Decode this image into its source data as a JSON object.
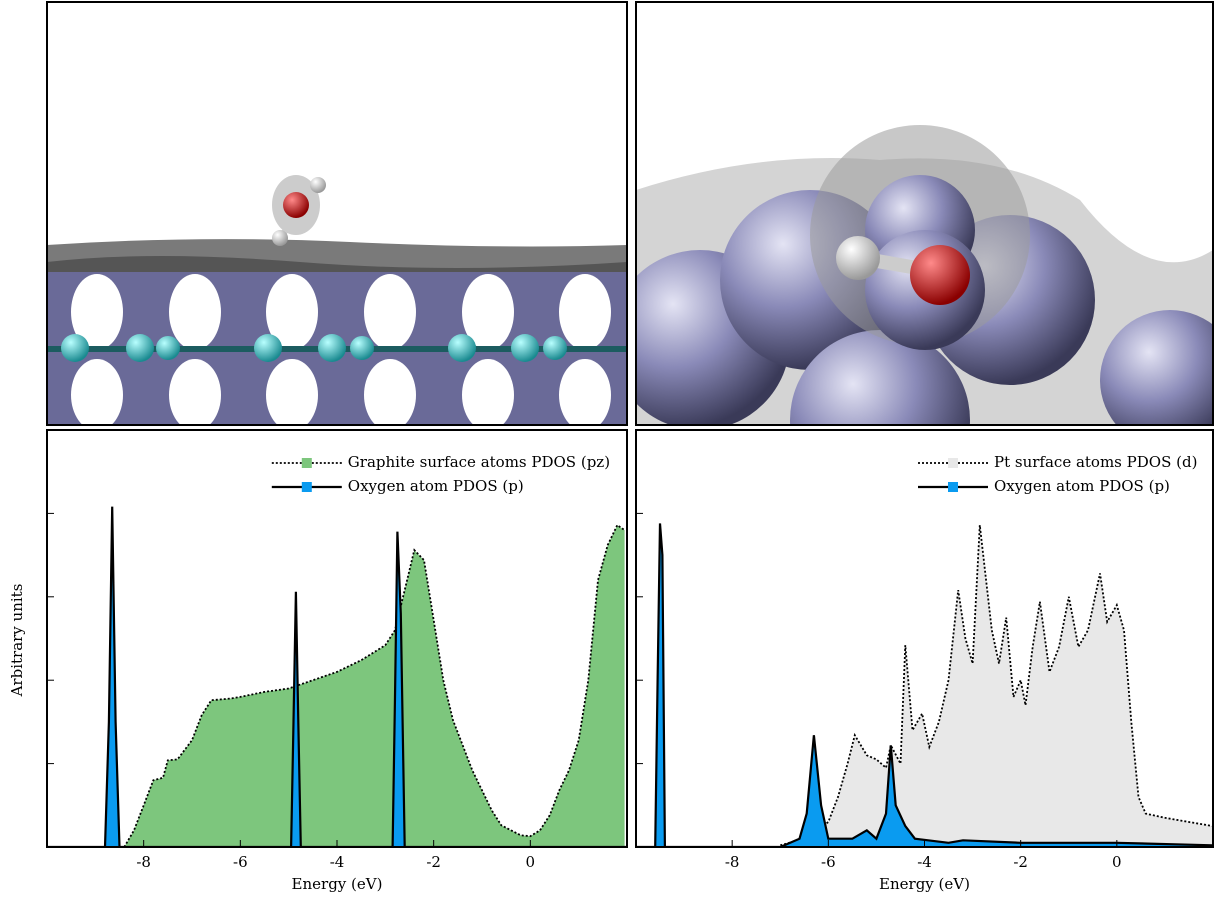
{
  "chart_data": [
    {
      "type": "area",
      "xlabel": "Energy (eV)",
      "ylabel": "Arbitrary units",
      "xlim": [
        -10,
        2
      ],
      "ylim": [
        0,
        5
      ],
      "xticks": [
        -8,
        -6,
        -4,
        -2,
        0
      ],
      "yticks": [
        0,
        1,
        2,
        3,
        4,
        5
      ],
      "legend": "upper right",
      "series": [
        {
          "name": "Graphite surface atoms PDOS (pz)",
          "color": "#7dc67d",
          "line": "dotted",
          "x": [
            -8.4,
            -8.2,
            -8.0,
            -7.8,
            -7.6,
            -7.5,
            -7.3,
            -7.0,
            -6.8,
            -6.6,
            -6.4,
            -6.2,
            -6.0,
            -5.5,
            -5.0,
            -4.5,
            -4.0,
            -3.5,
            -3.0,
            -2.8,
            -2.6,
            -2.4,
            -2.2,
            -2.0,
            -1.8,
            -1.6,
            -1.4,
            -1.2,
            -1.0,
            -0.8,
            -0.6,
            -0.4,
            -0.2,
            0,
            0.2,
            0.4,
            0.6,
            0.8,
            1.0,
            1.2,
            1.4,
            1.6,
            1.8,
            1.95
          ],
          "values": [
            0,
            0.2,
            0.5,
            0.8,
            0.83,
            1.04,
            1.05,
            1.28,
            1.58,
            1.76,
            1.77,
            1.78,
            1.8,
            1.86,
            1.9,
            2.0,
            2.1,
            2.24,
            2.42,
            2.6,
            3.08,
            3.56,
            3.44,
            2.72,
            2.0,
            1.52,
            1.22,
            0.92,
            0.68,
            0.44,
            0.26,
            0.2,
            0.14,
            0.13,
            0.2,
            0.38,
            0.68,
            0.92,
            1.28,
            2.0,
            3.2,
            3.62,
            3.86,
            3.8
          ]
        },
        {
          "name": "Oxygen atom PDOS (p)",
          "color": "#0a9bf0",
          "line": "solid",
          "x": [
            -10,
            -8.8,
            -8.72,
            -8.65,
            -8.58,
            -8.5,
            -4.95,
            -4.9,
            -4.85,
            -4.8,
            -4.75,
            -2.85,
            -2.8,
            -2.75,
            -2.68,
            -2.6,
            2
          ],
          "values": [
            0,
            0,
            1.5,
            4.08,
            1.5,
            0,
            0,
            1.5,
            3.06,
            1.5,
            0,
            0,
            1.8,
            3.78,
            2.8,
            0,
            0
          ]
        }
      ]
    },
    {
      "type": "area",
      "xlabel": "Energy (eV)",
      "xlim": [
        -10,
        2
      ],
      "ylim": [
        0,
        5
      ],
      "xticks": [
        -8,
        -6,
        -4,
        -2,
        0
      ],
      "yticks": [
        0,
        1,
        2,
        3,
        4,
        5
      ],
      "legend": "upper right",
      "series": [
        {
          "name": "Pt surface atoms PDOS (d)",
          "color": "#e8e8e8",
          "line": "dotted",
          "x": [
            -7,
            -6.5,
            -6.0,
            -5.8,
            -5.6,
            -5.45,
            -5.2,
            -5.0,
            -4.8,
            -4.7,
            -4.5,
            -4.4,
            -4.25,
            -4.05,
            -3.9,
            -3.7,
            -3.5,
            -3.3,
            -3.15,
            -3.0,
            -2.85,
            -2.6,
            -2.45,
            -2.3,
            -2.15,
            -2.0,
            -1.9,
            -1.75,
            -1.6,
            -1.4,
            -1.2,
            -1.0,
            -0.8,
            -0.6,
            -0.35,
            -0.2,
            0,
            0.15,
            0.3,
            0.45,
            0.6,
            1.0,
            1.5,
            2.0
          ],
          "values": [
            0.02,
            0.1,
            0.3,
            0.6,
            1.0,
            1.34,
            1.1,
            1.05,
            0.95,
            1.22,
            1.0,
            2.42,
            1.4,
            1.6,
            1.2,
            1.5,
            2.0,
            3.08,
            2.5,
            2.2,
            3.86,
            2.6,
            2.2,
            2.75,
            1.8,
            2.0,
            1.7,
            2.4,
            2.94,
            2.1,
            2.4,
            3.0,
            2.4,
            2.6,
            3.28,
            2.7,
            2.9,
            2.6,
            1.5,
            0.6,
            0.4,
            0.35,
            0.3,
            0.25
          ]
        },
        {
          "name": "Oxygen atom PDOS (p)",
          "color": "#0a9bf0",
          "line": "solid",
          "x": [
            -10,
            -9.6,
            -9.55,
            -9.5,
            -9.45,
            -9.4,
            -7,
            -6.6,
            -6.45,
            -6.3,
            -6.15,
            -6.0,
            -5.5,
            -5.2,
            -5.0,
            -4.8,
            -4.7,
            -4.6,
            -4.4,
            -4.2,
            -3.5,
            -3.2,
            -2,
            0,
            2
          ],
          "values": [
            0,
            0,
            2,
            3.88,
            3.5,
            0,
            0,
            0.1,
            0.4,
            1.34,
            0.5,
            0.1,
            0.1,
            0.2,
            0.1,
            0.4,
            1.22,
            0.5,
            0.25,
            0.1,
            0.05,
            0.08,
            0.05,
            0.05,
            0.02
          ]
        }
      ]
    }
  ]
}
